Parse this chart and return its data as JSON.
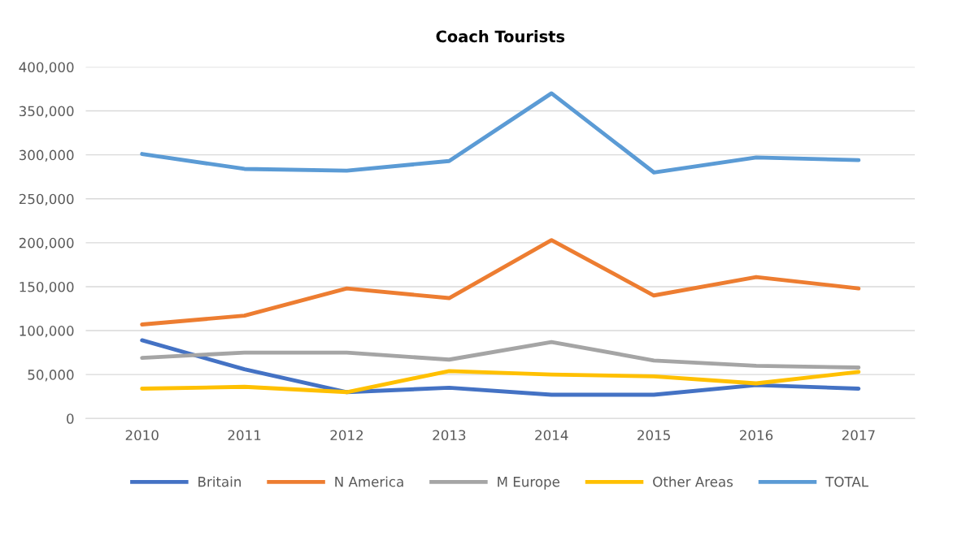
{
  "chart_data": {
    "type": "line",
    "title": "Coach Tourists",
    "categories": [
      "2010",
      "2011",
      "2012",
      "2013",
      "2014",
      "2015",
      "2016",
      "2017"
    ],
    "series": [
      {
        "name": "Britain",
        "color": "#4472c4",
        "values": [
          89000,
          56000,
          30000,
          35000,
          27000,
          27000,
          38000,
          34000
        ]
      },
      {
        "name": "N America",
        "color": "#ed7d31",
        "values": [
          107000,
          117000,
          148000,
          137000,
          203000,
          140000,
          161000,
          148000
        ]
      },
      {
        "name": "M Europe",
        "color": "#a5a5a5",
        "values": [
          69000,
          75000,
          75000,
          67000,
          87000,
          66000,
          60000,
          58000
        ]
      },
      {
        "name": "Other Areas",
        "color": "#ffc000",
        "values": [
          34000,
          36000,
          30000,
          54000,
          50000,
          48000,
          40000,
          53000
        ]
      },
      {
        "name": "TOTAL",
        "color": "#5b9bd5",
        "values": [
          301000,
          284000,
          282000,
          293000,
          370000,
          280000,
          297000,
          294000
        ]
      }
    ],
    "ylim": [
      0,
      400000
    ],
    "yticks": [
      {
        "value": 0,
        "label": "0"
      },
      {
        "value": 50000,
        "label": "50,000"
      },
      {
        "value": 100000,
        "label": "100,000"
      },
      {
        "value": 150000,
        "label": "150,000"
      },
      {
        "value": 200000,
        "label": "200,000"
      },
      {
        "value": 250000,
        "label": "250,000"
      },
      {
        "value": 300000,
        "label": "300,000"
      },
      {
        "value": 350000,
        "label": "350,000"
      },
      {
        "value": 400000,
        "label": "400,000"
      }
    ],
    "grid": "y",
    "legend": "bottom",
    "marker": "none",
    "line_style": "solid"
  }
}
